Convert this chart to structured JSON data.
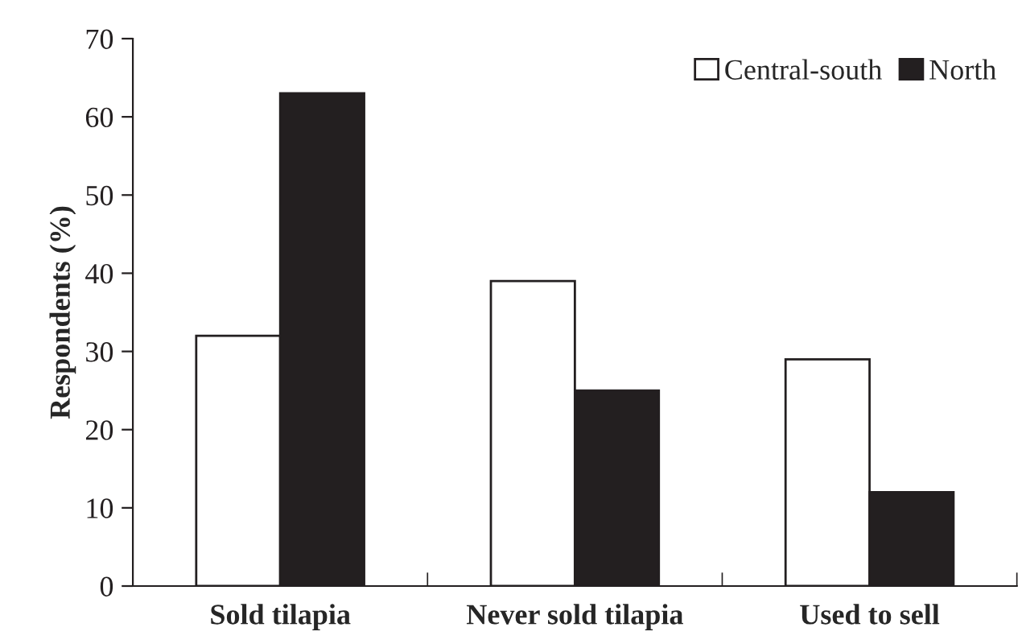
{
  "chart_data": {
    "type": "bar",
    "ylabel": "Respondents (%)",
    "categories": [
      "Sold tilapia",
      "Never sold tilapia",
      "Used to sell"
    ],
    "series": [
      {
        "name": "Central-south",
        "color": "#ffffff",
        "values": [
          32,
          39,
          29
        ]
      },
      {
        "name": "North",
        "color": "#231f20",
        "values": [
          63,
          25,
          12
        ]
      }
    ],
    "ylim": [
      0,
      70
    ],
    "yticks": [
      0,
      10,
      20,
      30,
      40,
      50,
      60,
      70
    ],
    "grid": false,
    "legend": "top right"
  }
}
